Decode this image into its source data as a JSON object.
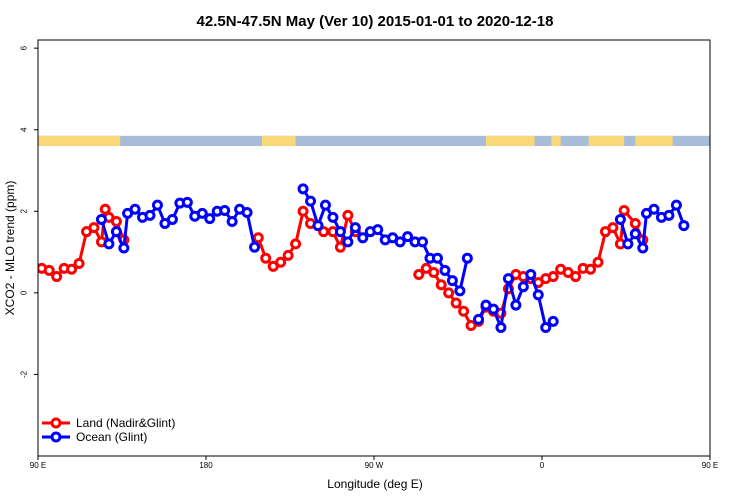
{
  "chart_data": {
    "type": "line",
    "title": "42.5N-47.5N May (Ver 10)   2015-01-01 to 2020-12-18",
    "xlabel": "Longitude (deg E)",
    "ylabel": "XCO2 - MLO trend (ppm)",
    "xlim": [
      90,
      450
    ],
    "ylim": [
      -4,
      6.2
    ],
    "x_ticks": [
      {
        "value": 90,
        "label": "90 E"
      },
      {
        "value": 180,
        "label": "180"
      },
      {
        "value": 270,
        "label": "90 W"
      },
      {
        "value": 360,
        "label": "0"
      },
      {
        "value": 450,
        "label": "90 E"
      },
      {
        "value": 540,
        "label": "180"
      }
    ],
    "y_ticks": [
      {
        "value": -2,
        "label": "-2"
      },
      {
        "value": 0,
        "label": "0"
      },
      {
        "value": 2,
        "label": "2"
      },
      {
        "value": 4,
        "label": "4"
      },
      {
        "value": 6,
        "label": "6"
      }
    ],
    "land_sea_strip": {
      "y_range": [
        3.6,
        3.85
      ],
      "land_color": "#f9d877",
      "ocean_color": "#a7bcd8",
      "land_segments": [
        [
          90,
          134
        ],
        [
          210,
          228
        ],
        [
          330,
          356
        ],
        [
          365,
          370
        ],
        [
          385,
          404
        ],
        [
          410,
          430
        ]
      ]
    },
    "legend": {
      "position": "bottom-left"
    },
    "series": [
      {
        "name": "Land (Nadir&Glint)",
        "color": "#ff0000",
        "segments": [
          [
            [
              92,
              0.6
            ],
            [
              96,
              0.55
            ],
            [
              100,
              0.4
            ],
            [
              104,
              0.6
            ],
            [
              108,
              0.58
            ],
            [
              112,
              0.72
            ],
            [
              116,
              1.5
            ],
            [
              120,
              1.6
            ],
            [
              124,
              1.25
            ],
            [
              126,
              2.05
            ],
            [
              128,
              1.85
            ],
            [
              132,
              1.75
            ],
            [
              136,
              1.3
            ]
          ],
          [
            [
              208,
              1.35
            ],
            [
              212,
              0.85
            ],
            [
              216,
              0.65
            ],
            [
              220,
              0.75
            ],
            [
              224,
              0.92
            ],
            [
              228,
              1.2
            ],
            [
              232,
              2.0
            ],
            [
              236,
              1.7
            ]
          ],
          [
            [
              243,
              1.5
            ],
            [
              248,
              1.5
            ],
            [
              252,
              1.12
            ],
            [
              256,
              1.9
            ],
            [
              260,
              1.5
            ]
          ],
          [
            [
              294,
              0.45
            ],
            [
              298,
              0.6
            ],
            [
              302,
              0.5
            ],
            [
              306,
              0.2
            ],
            [
              310,
              0.0
            ],
            [
              314,
              -0.25
            ],
            [
              318,
              -0.45
            ],
            [
              322,
              -0.8
            ],
            [
              326,
              -0.7
            ],
            [
              330,
              -0.35
            ],
            [
              334,
              -0.45
            ],
            [
              338,
              -0.5
            ],
            [
              342,
              0.1
            ],
            [
              346,
              0.45
            ],
            [
              350,
              0.4
            ],
            [
              354,
              0.35
            ],
            [
              358,
              0.25
            ],
            [
              362,
              0.35
            ],
            [
              366,
              0.4
            ],
            [
              370,
              0.58
            ],
            [
              374,
              0.5
            ],
            [
              378,
              0.4
            ],
            [
              382,
              0.6
            ],
            [
              386,
              0.58
            ],
            [
              390,
              0.75
            ],
            [
              394,
              1.5
            ],
            [
              398,
              1.6
            ],
            [
              402,
              1.2
            ],
            [
              404,
              2.02
            ],
            [
              410,
              1.7
            ],
            [
              414,
              1.3
            ]
          ]
        ]
      },
      {
        "name": "Ocean (Glint)",
        "color": "#0000ff",
        "segments": [
          [
            [
              124,
              1.8
            ],
            [
              128,
              1.2
            ],
            [
              132,
              1.5
            ],
            [
              136,
              1.1
            ],
            [
              138,
              1.95
            ],
            [
              142,
              2.05
            ],
            [
              146,
              1.85
            ],
            [
              150,
              1.9
            ],
            [
              154,
              2.15
            ],
            [
              158,
              1.7
            ],
            [
              162,
              1.8
            ],
            [
              166,
              2.2
            ],
            [
              170,
              2.22
            ],
            [
              174,
              1.88
            ],
            [
              178,
              1.95
            ],
            [
              182,
              1.82
            ],
            [
              186,
              2.0
            ],
            [
              190,
              2.02
            ],
            [
              194,
              1.75
            ],
            [
              198,
              2.05
            ],
            [
              202,
              1.97
            ],
            [
              206,
              1.12
            ]
          ],
          [
            [
              232,
              2.55
            ],
            [
              236,
              2.25
            ],
            [
              240,
              1.65
            ],
            [
              244,
              2.15
            ],
            [
              248,
              1.85
            ],
            [
              252,
              1.5
            ],
            [
              256,
              1.25
            ],
            [
              260,
              1.6
            ],
            [
              264,
              1.35
            ],
            [
              268,
              1.5
            ],
            [
              272,
              1.55
            ],
            [
              276,
              1.3
            ],
            [
              280,
              1.35
            ],
            [
              284,
              1.25
            ],
            [
              288,
              1.38
            ],
            [
              292,
              1.25
            ],
            [
              296,
              1.25
            ],
            [
              300,
              0.85
            ],
            [
              304,
              0.85
            ],
            [
              308,
              0.55
            ],
            [
              312,
              0.3
            ],
            [
              316,
              0.05
            ],
            [
              320,
              0.85
            ]
          ],
          [
            [
              326,
              -0.65
            ],
            [
              330,
              -0.3
            ],
            [
              334,
              -0.4
            ],
            [
              338,
              -0.85
            ],
            [
              342,
              0.35
            ],
            [
              346,
              -0.3
            ],
            [
              350,
              0.15
            ],
            [
              354,
              0.45
            ],
            [
              358,
              -0.05
            ],
            [
              362,
              -0.85
            ],
            [
              366,
              -0.7
            ]
          ],
          [
            [
              402,
              1.8
            ],
            [
              406,
              1.2
            ],
            [
              410,
              1.45
            ],
            [
              414,
              1.1
            ],
            [
              416,
              1.95
            ],
            [
              420,
              2.05
            ],
            [
              424,
              1.85
            ],
            [
              428,
              1.9
            ],
            [
              432,
              2.15
            ],
            [
              436,
              1.65
            ]
          ]
        ]
      }
    ]
  }
}
